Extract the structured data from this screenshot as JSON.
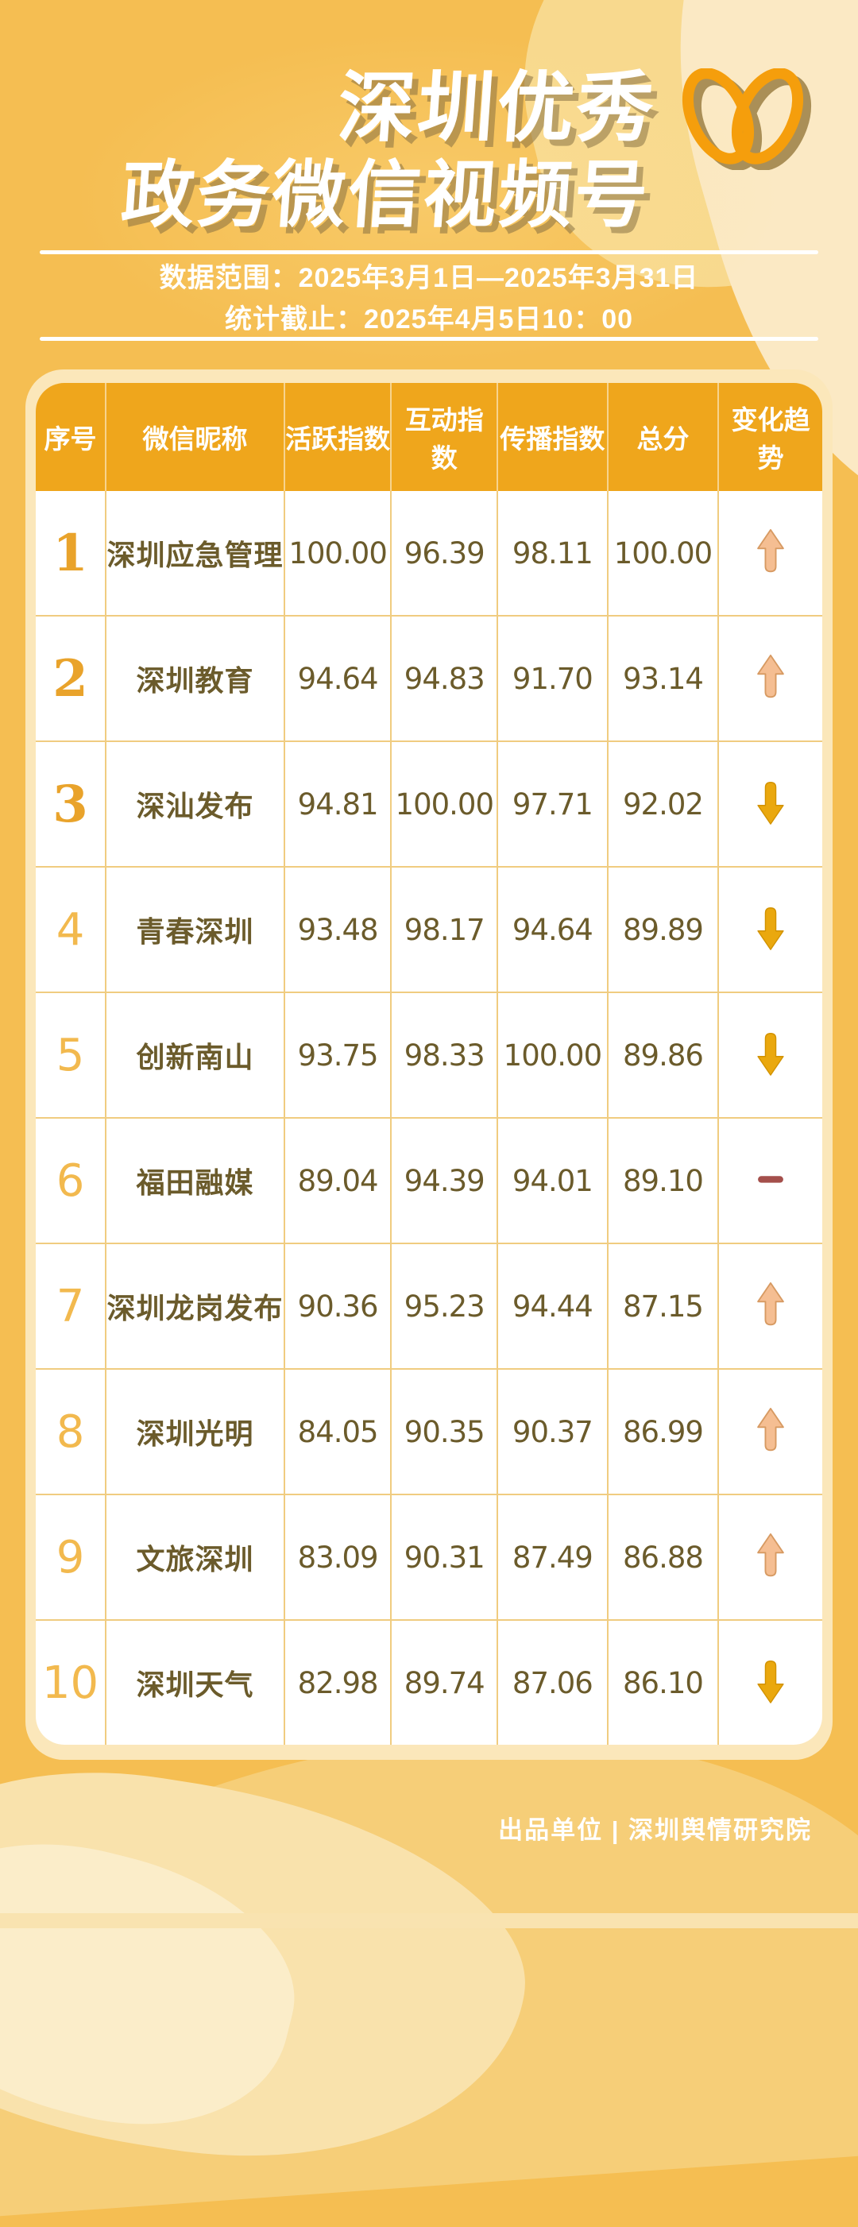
{
  "header": {
    "title_line1": "深圳优秀",
    "title_line2": "政务微信视频号",
    "logo_icon": "wechat-channels-logo",
    "data_range": "数据范围：2025年3月1日—2025年3月31日",
    "stat_deadline": "统计截止：2025年4月5日10：00"
  },
  "chart_data": {
    "type": "table",
    "title": "深圳优秀政务微信视频号",
    "columns": [
      "序号",
      "微信昵称",
      "活跃指数",
      "互动指数",
      "传播指数",
      "总分",
      "变化趋势"
    ],
    "rows": [
      {
        "rank": "1",
        "name": "深圳应急管理",
        "activity": "100.00",
        "interaction": "96.39",
        "spread": "98.11",
        "total": "100.00",
        "trend": "up"
      },
      {
        "rank": "2",
        "name": "深圳教育",
        "activity": "94.64",
        "interaction": "94.83",
        "spread": "91.70",
        "total": "93.14",
        "trend": "up"
      },
      {
        "rank": "3",
        "name": "深汕发布",
        "activity": "94.81",
        "interaction": "100.00",
        "spread": "97.71",
        "total": "92.02",
        "trend": "down"
      },
      {
        "rank": "4",
        "name": "青春深圳",
        "activity": "93.48",
        "interaction": "98.17",
        "spread": "94.64",
        "total": "89.89",
        "trend": "down"
      },
      {
        "rank": "5",
        "name": "创新南山",
        "activity": "93.75",
        "interaction": "98.33",
        "spread": "100.00",
        "total": "89.86",
        "trend": "down"
      },
      {
        "rank": "6",
        "name": "福田融媒",
        "activity": "89.04",
        "interaction": "94.39",
        "spread": "94.01",
        "total": "89.10",
        "trend": "flat"
      },
      {
        "rank": "7",
        "name": "深圳龙岗发布",
        "activity": "90.36",
        "interaction": "95.23",
        "spread": "94.44",
        "total": "87.15",
        "trend": "up"
      },
      {
        "rank": "8",
        "name": "深圳光明",
        "activity": "84.05",
        "interaction": "90.35",
        "spread": "90.37",
        "total": "86.99",
        "trend": "up"
      },
      {
        "rank": "9",
        "name": "文旅深圳",
        "activity": "83.09",
        "interaction": "90.31",
        "spread": "87.49",
        "total": "86.88",
        "trend": "up"
      },
      {
        "rank": "10",
        "name": "深圳天气",
        "activity": "82.98",
        "interaction": "89.74",
        "spread": "87.06",
        "total": "86.10",
        "trend": "down"
      }
    ]
  },
  "trend_icons": {
    "up": "up-arrow-icon",
    "down": "down-arrow-icon",
    "flat": "dash-icon"
  },
  "footer": {
    "credit": "出品单位 | 深圳舆情研究院"
  },
  "colors": {
    "background": "#F5BE52",
    "card": "#FBE7BA",
    "header_row": "#EFA61C",
    "cell_text": "#6B5B2B",
    "rank_top3": "#E9A32B",
    "rank_other": "#F2B94E",
    "up_arrow": "#F5BE92",
    "down_arrow": "#EAA80E",
    "dash": "#A44F4B",
    "logo": "#F59E0C",
    "title_text": "#FFFFFF"
  }
}
